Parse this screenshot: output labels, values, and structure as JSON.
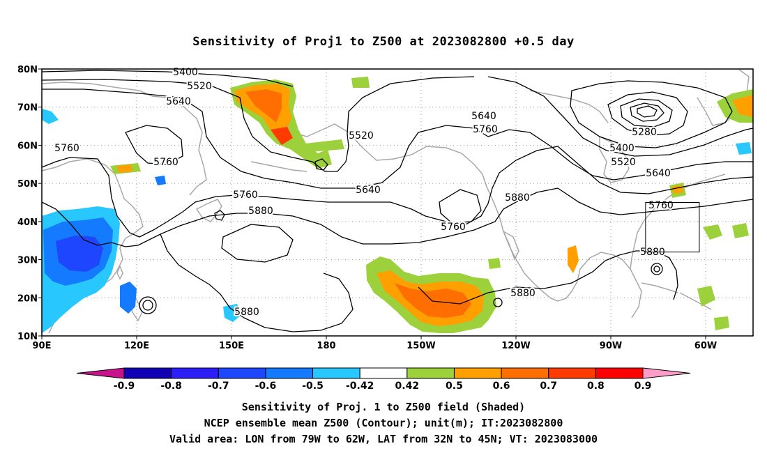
{
  "title": "Sensitivity of Proj1 to Z500 at 2023082800 +0.5 day",
  "lat_ticks": [
    "80N",
    "70N",
    "60N",
    "50N",
    "40N",
    "30N",
    "20N",
    "10N"
  ],
  "lon_ticks": [
    "90E",
    "120E",
    "150E",
    "180",
    "150W",
    "120W",
    "90W",
    "60W"
  ],
  "contour_labels": [
    "5400",
    "5520",
    "5640",
    "5760",
    "5760",
    "5760",
    "5520",
    "5640",
    "5760",
    "5880",
    "5640",
    "5760",
    "5880",
    "5760",
    "5880",
    "5280",
    "5400",
    "5520",
    "5640",
    "5760",
    "5880",
    "5880"
  ],
  "colorbar": {
    "labels": [
      "-0.9",
      "-0.8",
      "-0.7",
      "-0.6",
      "-0.5",
      "-0.42",
      "0.42",
      "0.5",
      "0.6",
      "0.7",
      "0.8",
      "0.9"
    ],
    "colors": [
      "#1200b4",
      "#2b1ff5",
      "#1e46ff",
      "#147aff",
      "#28c8ff",
      "#ffffff",
      "#9cd13c",
      "#ff9f00",
      "#ff6e00",
      "#ff3b00",
      "#ff0000"
    ],
    "low_end_color": "#c8138c",
    "high_end_color": "#ff9cc8"
  },
  "footer": {
    "line1": "Sensitivity of Proj. 1 to Z500 field (Shaded)",
    "line2": "NCEP ensemble mean Z500 (Contour); unit(m); IT:2023082800",
    "line3": "Valid area: LON from 79W to 62W, LAT from 32N to 45N; VT: 2023083000"
  },
  "valid_area": {
    "lon_min": -79,
    "lon_max": -62,
    "lat_min": 32,
    "lat_max": 45
  }
}
